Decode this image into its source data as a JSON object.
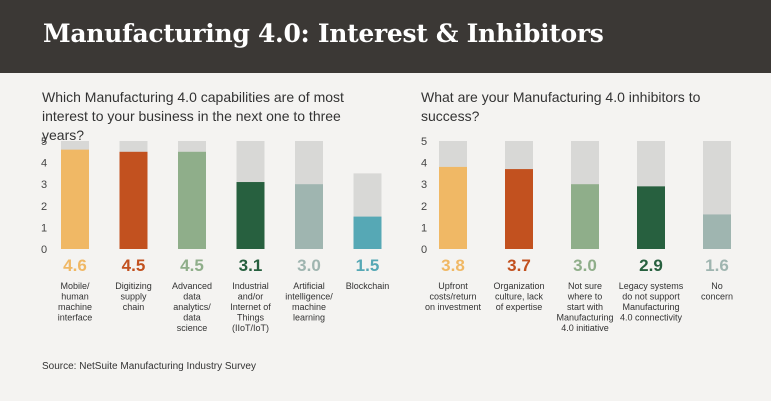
{
  "header": {
    "title": "Manufacturing 4.0: Interest & Inhibitors"
  },
  "source": "Source: NetSuite Manufacturing Industry Survey",
  "colors": {
    "background": "#f4f3f1",
    "header_bg": "#3b3835",
    "track": "#d8d8d6"
  },
  "chart_data": [
    {
      "type": "bar",
      "title": "Which Manufacturing 4.0 capabilities are of most interest to your business in the next one to three years?",
      "ylim": [
        0,
        5
      ],
      "yticks": [
        0,
        1,
        2,
        3,
        4,
        5
      ],
      "categories": [
        "Mobile/\nhuman\nmachine\ninterface",
        "Digitizing\nsupply\nchain",
        "Advanced\ndata\nanalytics/\ndata\nscience",
        "Industrial\nand/or\nInternet of\nThings\n(IIoT/IoT)",
        "Artificial\nintelligence/\nmachine\nlearning",
        "Blockchain"
      ],
      "values": [
        4.6,
        4.5,
        4.5,
        3.1,
        3.0,
        1.5
      ],
      "value_labels": [
        "4.6",
        "4.5",
        "4.5",
        "3.1",
        "3.0",
        "1.5"
      ],
      "track_max": [
        5,
        5,
        5,
        5,
        5,
        3.5
      ],
      "colors": [
        "#f0b865",
        "#c2511f",
        "#8fae8a",
        "#27603f",
        "#9fb5b0",
        "#56a8b5"
      ]
    },
    {
      "type": "bar",
      "title": "What are your Manufacturing 4.0 inhibitors to success?",
      "ylim": [
        0,
        5
      ],
      "yticks": [
        0,
        1,
        2,
        3,
        4,
        5
      ],
      "categories": [
        "Upfront\ncosts/return\non investment",
        "Organization\nculture, lack\nof expertise",
        "Not sure\nwhere to\nstart with\nManufacturing\n4.0 initiative",
        "Legacy systems\ndo not support\nManufacturing\n4.0 connectivity",
        "No\nconcern"
      ],
      "values": [
        3.8,
        3.7,
        3.0,
        2.9,
        1.6
      ],
      "value_labels": [
        "3.8",
        "3.7",
        "3.0",
        "2.9",
        "1.6"
      ],
      "track_max": [
        5,
        5,
        5,
        5,
        5
      ],
      "colors": [
        "#f0b865",
        "#c2511f",
        "#8fae8a",
        "#27603f",
        "#9fb5b0"
      ]
    }
  ]
}
